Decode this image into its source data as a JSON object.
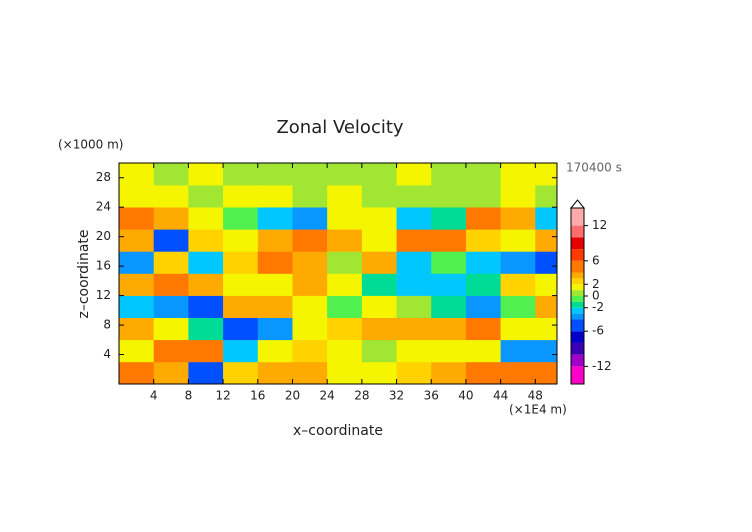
{
  "chart_data": {
    "type": "heatmap",
    "title": "Zonal Velocity",
    "y_unit_label": "(×1000 m)",
    "x_unit_label": "(×1E4 m)",
    "time_label": "170400 s",
    "x_label": "x–coordinate",
    "y_label": "z–coordinate",
    "xlim": [
      0,
      50.5
    ],
    "ylim": [
      0,
      30
    ],
    "xticks": [
      4,
      8,
      12,
      16,
      20,
      24,
      28,
      32,
      36,
      40,
      44,
      48
    ],
    "yticks": [
      4,
      8,
      12,
      16,
      20,
      24,
      28
    ],
    "x_edges": [
      0,
      4,
      8,
      12,
      16,
      20,
      24,
      28,
      32,
      36,
      40,
      44,
      48,
      50.5
    ],
    "z_edges": [
      0,
      3,
      6,
      9,
      12,
      15,
      18,
      21,
      24,
      27,
      30
    ],
    "values": [
      [
        4,
        3,
        -6,
        2,
        3,
        3,
        1,
        1,
        2,
        3,
        4,
        5,
        4
      ],
      [
        1,
        5,
        5,
        -3,
        1,
        2,
        1,
        0,
        1,
        1,
        1,
        -4,
        -4
      ],
      [
        3,
        1,
        -2,
        -5,
        -4,
        1,
        2,
        3,
        3,
        3,
        4,
        1,
        1
      ],
      [
        -3,
        -4,
        -5,
        3,
        3,
        1,
        -1,
        1,
        0,
        -2,
        -4,
        -1,
        3
      ],
      [
        3,
        5,
        3,
        1,
        1,
        3,
        1,
        -2,
        -3,
        -3,
        -2,
        2,
        1
      ],
      [
        -4,
        2,
        -3,
        2,
        5,
        3,
        0,
        3,
        -3,
        -1,
        -3,
        -4,
        -5
      ],
      [
        3,
        -5,
        2,
        1,
        3,
        4,
        3,
        1,
        4,
        4,
        2,
        1,
        3
      ],
      [
        4,
        3,
        1,
        -1,
        -3,
        -4,
        1,
        1,
        -3,
        -2,
        4,
        3,
        -3
      ],
      [
        1,
        1,
        0,
        1,
        1,
        0,
        1,
        0,
        0,
        0,
        0,
        1,
        0
      ],
      [
        1,
        0,
        1,
        0,
        0,
        0,
        0,
        0,
        1,
        0,
        0,
        1,
        1
      ]
    ],
    "colorbar": {
      "lim": [
        -15,
        15
      ],
      "levels": [
        -15,
        -12,
        -10,
        -8,
        -6,
        -4,
        -3,
        -2,
        -1,
        0,
        1,
        2,
        3,
        4,
        6,
        8,
        10,
        12,
        15
      ],
      "colors": [
        "#ff00c8",
        "#a000c8",
        "#3c00b4",
        "#0000c8",
        "#0050ff",
        "#0a96ff",
        "#00c8ff",
        "#00dc96",
        "#50f050",
        "#a0e632",
        "#f5f500",
        "#ffd200",
        "#ffaa00",
        "#ff7800",
        "#ff3c00",
        "#e60000",
        "#ff6e6e",
        "#ffaaaa"
      ],
      "ticks": [
        12,
        6,
        2,
        0,
        -2,
        -6,
        -12
      ]
    }
  }
}
